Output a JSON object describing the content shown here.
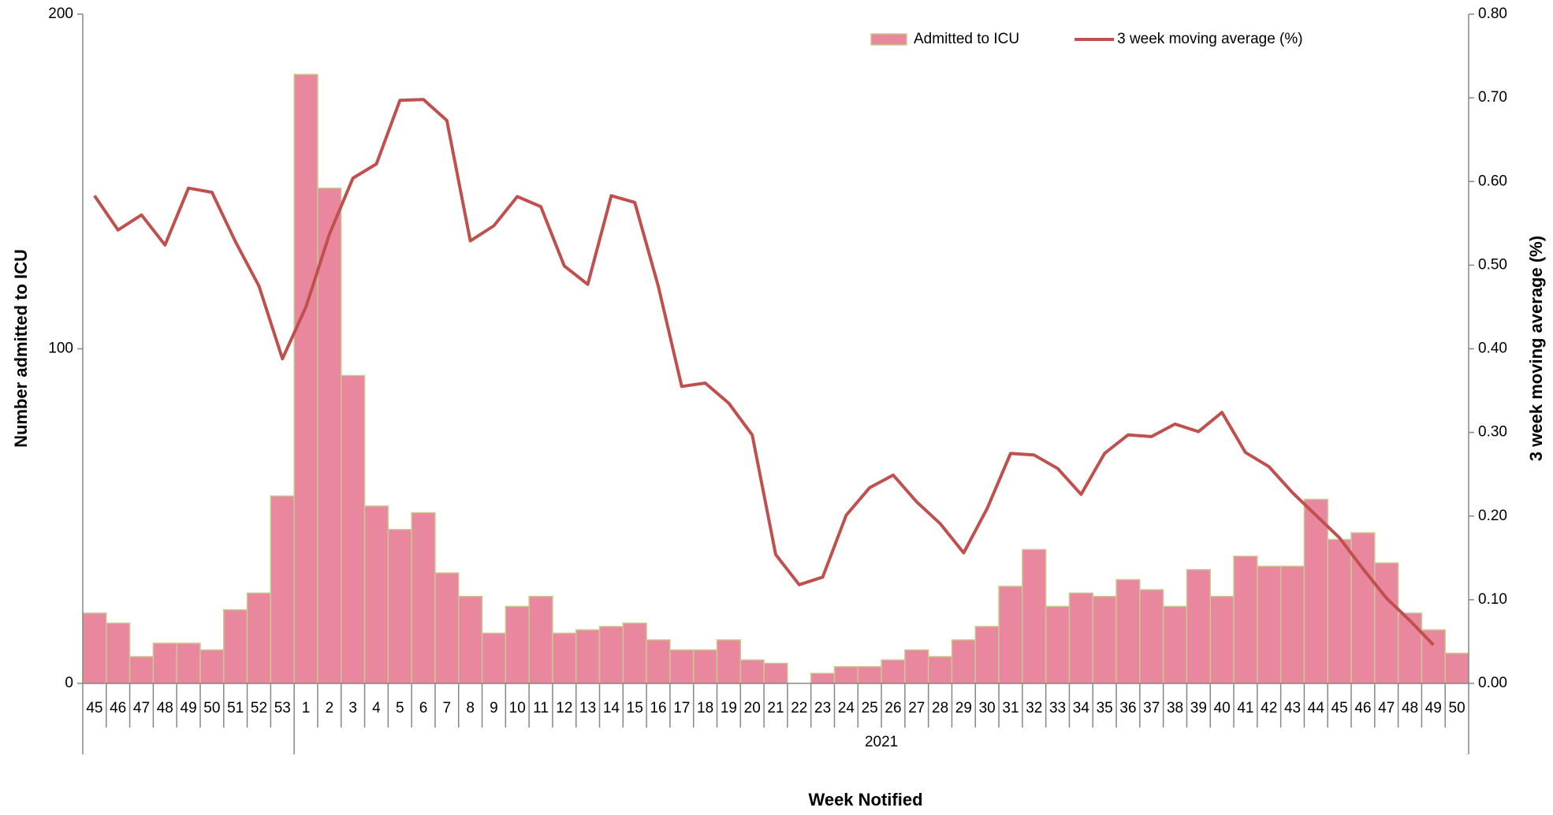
{
  "chart_data": {
    "type": "bar",
    "x_label": "Week Notified",
    "y_label": "Number admitted to ICU",
    "y2_label": "3 week moving average (%)",
    "x_group_label": "2021",
    "categories": [
      "45",
      "46",
      "47",
      "48",
      "49",
      "50",
      "51",
      "52",
      "53",
      "1",
      "2",
      "3",
      "4",
      "5",
      "6",
      "7",
      "8",
      "9",
      "10",
      "11",
      "12",
      "13",
      "14",
      "15",
      "16",
      "17",
      "18",
      "19",
      "20",
      "21",
      "22",
      "23",
      "24",
      "25",
      "26",
      "27",
      "28",
      "29",
      "30",
      "31",
      "32",
      "33",
      "34",
      "35",
      "36",
      "37",
      "38",
      "39",
      "40",
      "41",
      "42",
      "43",
      "44",
      "45",
      "46",
      "47",
      "48",
      "49",
      "50"
    ],
    "series": [
      {
        "name": "Admitted to ICU",
        "type": "bar",
        "color": "#E8879E",
        "edge_color": "#C9C98F",
        "values": [
          21,
          18,
          8,
          12,
          12,
          10,
          22,
          27,
          56,
          182,
          148,
          92,
          53,
          46,
          51,
          33,
          26,
          15,
          23,
          26,
          15,
          16,
          17,
          18,
          13,
          10,
          10,
          13,
          7,
          6,
          0,
          3,
          5,
          5,
          7,
          10,
          8,
          13,
          17,
          29,
          40,
          23,
          27,
          26,
          31,
          28,
          23,
          34,
          26,
          38,
          35,
          35,
          55,
          43,
          45,
          36,
          21,
          16,
          9
        ]
      },
      {
        "name": "3 week moving average (%)",
        "type": "line",
        "axis": "y2",
        "color": "#C0504D",
        "values": [
          0.583,
          0.542,
          0.56,
          0.524,
          0.592,
          0.587,
          0.528,
          0.475,
          0.388,
          0.45,
          0.537,
          0.604,
          0.621,
          0.697,
          0.698,
          0.673,
          0.529,
          0.547,
          0.582,
          0.57,
          0.499,
          0.477,
          0.583,
          0.575,
          0.475,
          0.355,
          0.359,
          0.335,
          0.297,
          0.154,
          0.118,
          0.127,
          0.201,
          0.234,
          0.249,
          0.217,
          0.191,
          0.156,
          0.209,
          0.275,
          0.273,
          0.257,
          0.226,
          0.275,
          0.297,
          0.295,
          0.31,
          0.301,
          0.324,
          0.276,
          0.259,
          0.228,
          0.201,
          0.174,
          0.137,
          0.102,
          0.075,
          0.046,
          null
        ]
      }
    ],
    "ylim": [
      0,
      200
    ],
    "yticks": [
      0,
      100,
      200
    ],
    "y2lim": [
      0,
      0.8
    ],
    "y2ticks": [
      {
        "value": 0,
        "label": "0.00"
      },
      {
        "value": 0.1,
        "label": "0.10"
      },
      {
        "value": 0.2,
        "label": "0.20"
      },
      {
        "value": 0.3,
        "label": "0.30"
      },
      {
        "value": 0.4,
        "label": "0.40"
      },
      {
        "value": 0.5,
        "label": "0.50"
      },
      {
        "value": 0.6,
        "label": "0.60"
      },
      {
        "value": 0.7,
        "label": "0.70"
      },
      {
        "value": 0.8,
        "label": "0.80"
      }
    ],
    "grid": false,
    "legend": "top"
  }
}
